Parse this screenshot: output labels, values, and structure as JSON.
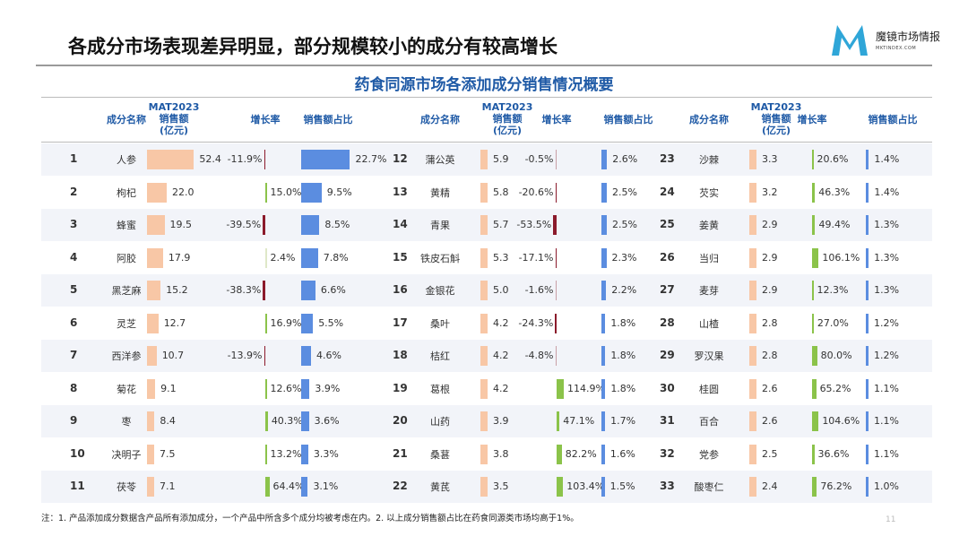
{
  "header": {
    "title": "各成分市场表现差异明显，部分规模较小的成分有较高增长",
    "logo_text": "魔镜市场情报",
    "logo_sub": "MKTINDEX.COM"
  },
  "table": {
    "title": "药食同源市场各添加成分销售情况概要",
    "columns": {
      "name": "成分名称",
      "sales_l1": "MAT2023",
      "sales_l2": "销售额",
      "sales_l3": "(亿元)",
      "growth": "增长率",
      "share": "销售额占比"
    },
    "colors": {
      "sales_bar": "#f8c7a6",
      "share_bar": "#5b8de0",
      "growth_pos": "#8bc34a",
      "growth_neg": "#8b1a2b"
    },
    "rows": [
      {
        "rank": "1",
        "name": "人参",
        "sales": 52.4,
        "growth": -11.9,
        "share": 22.7
      },
      {
        "rank": "2",
        "name": "枸杞",
        "sales": 22.0,
        "growth": 15.0,
        "share": 9.5
      },
      {
        "rank": "3",
        "name": "蜂蜜",
        "sales": 19.5,
        "growth": -39.5,
        "share": 8.5
      },
      {
        "rank": "4",
        "name": "阿胶",
        "sales": 17.9,
        "growth": 2.4,
        "share": 7.8
      },
      {
        "rank": "5",
        "name": "黑芝麻",
        "sales": 15.2,
        "growth": -38.3,
        "share": 6.6
      },
      {
        "rank": "6",
        "name": "灵芝",
        "sales": 12.7,
        "growth": 16.9,
        "share": 5.5
      },
      {
        "rank": "7",
        "name": "西洋参",
        "sales": 10.7,
        "growth": -13.9,
        "share": 4.6
      },
      {
        "rank": "8",
        "name": "菊花",
        "sales": 9.1,
        "growth": 12.6,
        "share": 3.9
      },
      {
        "rank": "9",
        "name": "枣",
        "sales": 8.4,
        "growth": 40.3,
        "share": 3.6
      },
      {
        "rank": "10",
        "name": "决明子",
        "sales": 7.5,
        "growth": 13.2,
        "share": 3.3
      },
      {
        "rank": "11",
        "name": "茯苓",
        "sales": 7.1,
        "growth": 64.4,
        "share": 3.1
      },
      {
        "rank": "12",
        "name": "蒲公英",
        "sales": 5.9,
        "growth": -0.5,
        "share": 2.6
      },
      {
        "rank": "13",
        "name": "黄精",
        "sales": 5.8,
        "growth": -20.6,
        "share": 2.5
      },
      {
        "rank": "14",
        "name": "青果",
        "sales": 5.7,
        "growth": -53.5,
        "share": 2.5
      },
      {
        "rank": "15",
        "name": "铁皮石斛",
        "sales": 5.3,
        "growth": -17.1,
        "share": 2.3
      },
      {
        "rank": "16",
        "name": "金银花",
        "sales": 5.0,
        "growth": -1.6,
        "share": 2.2
      },
      {
        "rank": "17",
        "name": "桑叶",
        "sales": 4.2,
        "growth": -24.3,
        "share": 1.8
      },
      {
        "rank": "18",
        "name": "桔红",
        "sales": 4.2,
        "growth": -4.8,
        "share": 1.8
      },
      {
        "rank": "19",
        "name": "葛根",
        "sales": 4.2,
        "growth": 114.9,
        "share": 1.8
      },
      {
        "rank": "20",
        "name": "山药",
        "sales": 3.9,
        "growth": 47.1,
        "share": 1.7
      },
      {
        "rank": "21",
        "name": "桑葚",
        "sales": 3.8,
        "growth": 82.2,
        "share": 1.6
      },
      {
        "rank": "22",
        "name": "黄芪",
        "sales": 3.5,
        "growth": 103.4,
        "share": 1.5
      },
      {
        "rank": "23",
        "name": "沙棘",
        "sales": 3.3,
        "growth": 20.6,
        "share": 1.4
      },
      {
        "rank": "24",
        "name": "芡实",
        "sales": 3.2,
        "growth": 46.3,
        "share": 1.4
      },
      {
        "rank": "25",
        "name": "姜黄",
        "sales": 2.9,
        "growth": 49.4,
        "share": 1.3
      },
      {
        "rank": "26",
        "name": "当归",
        "sales": 2.9,
        "growth": 106.1,
        "share": 1.3
      },
      {
        "rank": "27",
        "name": "麦芽",
        "sales": 2.9,
        "growth": 12.3,
        "share": 1.3
      },
      {
        "rank": "28",
        "name": "山楂",
        "sales": 2.8,
        "growth": 27.0,
        "share": 1.2
      },
      {
        "rank": "29",
        "name": "罗汉果",
        "sales": 2.8,
        "growth": 80.0,
        "share": 1.2
      },
      {
        "rank": "30",
        "name": "桂圆",
        "sales": 2.6,
        "growth": 65.2,
        "share": 1.1
      },
      {
        "rank": "31",
        "name": "百合",
        "sales": 2.6,
        "growth": 104.6,
        "share": 1.1
      },
      {
        "rank": "32",
        "name": "党参",
        "sales": 2.5,
        "growth": 36.6,
        "share": 1.1
      },
      {
        "rank": "33",
        "name": "酸枣仁",
        "sales": 2.4,
        "growth": 76.2,
        "share": 1.0
      }
    ]
  },
  "footer": {
    "note": "注：1. 产品添加成分数据含产品所有添加成分，一个产品中所含多个成分均被考虑在内。2. 以上成分销售额占比在药食同源类市场均高于1%。",
    "page": "11"
  }
}
